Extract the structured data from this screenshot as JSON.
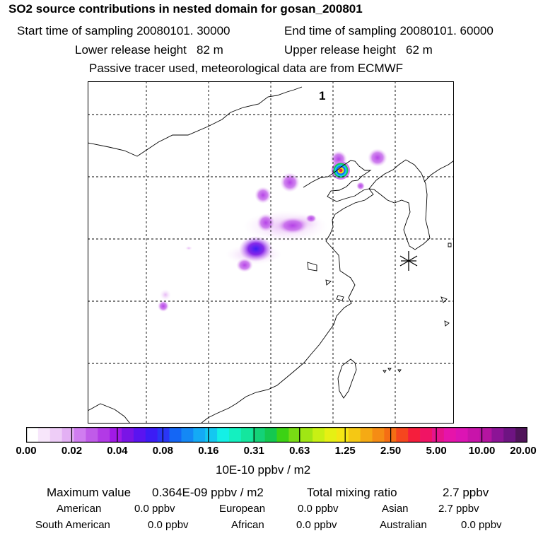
{
  "header": {
    "title": "SO2 source contributions in nested domain for gosan_200801",
    "start_label": "Start time of sampling 20080101. 30000",
    "end_label": "End time of sampling 20080101. 60000",
    "lower_label": "Lower release height   82 m",
    "upper_label": "Upper release height   62 m",
    "note": "Passive tracer used, meteorological data are from ECMWF"
  },
  "map": {
    "marker_label": "1",
    "release_marker": "asterisk-icon"
  },
  "colorbar": {
    "tick_labels": [
      "0.00",
      "0.02",
      "0.04",
      "0.08",
      "0.16",
      "0.31",
      "0.63",
      "1.25",
      "2.50",
      "5.00",
      "10.00",
      "20.00"
    ],
    "colors": [
      "#ffffff",
      "#f7e6fb",
      "#eecdf7",
      "#e3b0f4",
      "#d07df0",
      "#c05be9",
      "#b23ae6",
      "#a11ae6",
      "#7a14e6",
      "#5a14f0",
      "#3c1cf5",
      "#2a36f5",
      "#1466f5",
      "#1488f5",
      "#14aaf5",
      "#14c8f0",
      "#14f0e6",
      "#14f0c0",
      "#14e69e",
      "#14d278",
      "#14c850",
      "#3cd214",
      "#78dc14",
      "#a0e614",
      "#c8f014",
      "#e6f014",
      "#f5e614",
      "#f5c814",
      "#f5aa14",
      "#f58c14",
      "#f56e14",
      "#f5461e",
      "#f51e3c",
      "#f01464",
      "#e6148c",
      "#e614aa",
      "#dc14b4",
      "#c814aa",
      "#b414a0",
      "#8c1496",
      "#6e1482",
      "#50145a"
    ],
    "units": "10E-10 ppbv / m2"
  },
  "summary": {
    "max_label": "Maximum value",
    "max_value": "0.364E-09 ppbv / m2",
    "total_label": "Total mixing ratio",
    "total_value": "2.7 ppbv"
  },
  "regions": [
    {
      "name": "American",
      "value": "0.0 ppbv"
    },
    {
      "name": "European",
      "value": "0.0 ppbv"
    },
    {
      "name": "Asian",
      "value": "2.7 ppbv"
    },
    {
      "name": "South American",
      "value": "0.0 ppbv"
    },
    {
      "name": "African",
      "value": "0.0 ppbv"
    },
    {
      "name": "Australian",
      "value": "0.0 ppbv"
    }
  ]
}
